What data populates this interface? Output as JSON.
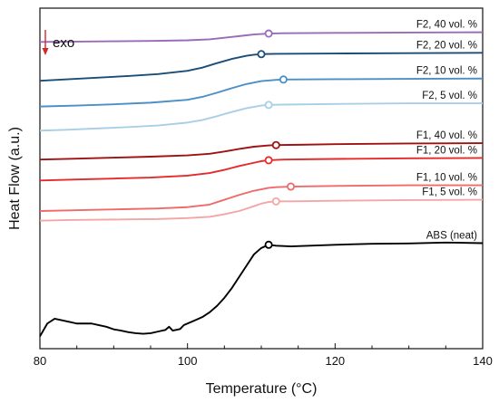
{
  "chart_data": {
    "type": "line",
    "title": "",
    "xlabel": "Temperature (°C)",
    "ylabel": "Heat Flow (a.u.)",
    "xlim": [
      80,
      140
    ],
    "ylim": [
      0,
      100
    ],
    "xticks": [
      80,
      100,
      120,
      140
    ],
    "grid": false,
    "legend": "none",
    "annotation": "exo",
    "annotation_color": "#d62728",
    "series": [
      {
        "name": "ABS (neat)",
        "color": "#000000",
        "marker_x": 111.0,
        "points": [
          [
            80,
            1
          ],
          [
            81,
            5
          ],
          [
            82,
            6.5
          ],
          [
            83,
            6
          ],
          [
            84,
            5.5
          ],
          [
            85,
            5
          ],
          [
            86,
            5
          ],
          [
            87,
            5
          ],
          [
            88,
            4.5
          ],
          [
            89,
            4
          ],
          [
            90,
            3.2
          ],
          [
            91,
            2.8
          ],
          [
            92,
            2.3
          ],
          [
            93,
            2
          ],
          [
            94,
            1.8
          ],
          [
            95,
            2
          ],
          [
            96,
            2.5
          ],
          [
            97,
            3
          ],
          [
            97.5,
            4
          ],
          [
            98,
            2.8
          ],
          [
            99,
            3.3
          ],
          [
            99.5,
            4.5
          ],
          [
            100,
            5
          ],
          [
            101,
            6
          ],
          [
            102,
            7
          ],
          [
            103,
            8.5
          ],
          [
            104,
            10.5
          ],
          [
            105,
            13
          ],
          [
            106,
            16
          ],
          [
            107,
            19.5
          ],
          [
            108,
            23
          ],
          [
            109,
            26.5
          ],
          [
            110,
            28.5
          ],
          [
            111,
            29.5
          ],
          [
            112,
            29.2
          ],
          [
            114,
            29
          ],
          [
            120,
            29.5
          ],
          [
            125,
            29.8
          ],
          [
            130,
            29.9
          ],
          [
            135,
            30.2
          ],
          [
            140,
            30
          ]
        ]
      },
      {
        "name": "F1,   5 vol. %",
        "color": "#f4a6a6",
        "marker_x": 112.0,
        "points": [
          [
            80,
            37
          ],
          [
            84,
            37.2
          ],
          [
            88,
            37.3
          ],
          [
            92,
            37.4
          ],
          [
            96,
            37.5
          ],
          [
            100,
            37.8
          ],
          [
            103,
            38.2
          ],
          [
            105,
            39
          ],
          [
            107,
            40
          ],
          [
            109,
            41.5
          ],
          [
            110,
            42.3
          ],
          [
            111,
            42.8
          ],
          [
            112,
            43
          ],
          [
            114,
            43
          ],
          [
            120,
            43.2
          ],
          [
            130,
            43.4
          ],
          [
            140,
            43.5
          ]
        ]
      },
      {
        "name": "F1, 10 vol. %",
        "color": "#f06a6a",
        "marker_x": 114.0,
        "points": [
          [
            80,
            40
          ],
          [
            84,
            40.2
          ],
          [
            88,
            40.4
          ],
          [
            92,
            40.6
          ],
          [
            96,
            40.8
          ],
          [
            100,
            41.2
          ],
          [
            103,
            42
          ],
          [
            105,
            43.5
          ],
          [
            107,
            45
          ],
          [
            109,
            46.3
          ],
          [
            111,
            47.2
          ],
          [
            112,
            47.4
          ],
          [
            114,
            47.6
          ],
          [
            120,
            47.8
          ],
          [
            130,
            48
          ],
          [
            140,
            48
          ]
        ]
      },
      {
        "name": "F1, 20 vol. %",
        "color": "#e42a2a",
        "marker_x": 111.0,
        "points": [
          [
            80,
            49.5
          ],
          [
            85,
            49.8
          ],
          [
            90,
            50.1
          ],
          [
            95,
            50.4
          ],
          [
            100,
            51
          ],
          [
            103,
            51.8
          ],
          [
            105,
            52.8
          ],
          [
            107,
            54
          ],
          [
            109,
            55
          ],
          [
            110,
            55.5
          ],
          [
            111,
            55.8
          ],
          [
            113,
            56
          ],
          [
            120,
            56.2
          ],
          [
            130,
            56.4
          ],
          [
            140,
            56.5
          ]
        ]
      },
      {
        "name": "F1, 40 vol. %",
        "color": "#a01212",
        "marker_x": 112.0,
        "points": [
          [
            80,
            56
          ],
          [
            85,
            56.3
          ],
          [
            90,
            56.6
          ],
          [
            95,
            56.9
          ],
          [
            100,
            57.3
          ],
          [
            103,
            57.8
          ],
          [
            105,
            58.5
          ],
          [
            107,
            59.3
          ],
          [
            109,
            60
          ],
          [
            111,
            60.4
          ],
          [
            112,
            60.5
          ],
          [
            115,
            60.6
          ],
          [
            120,
            60.8
          ],
          [
            130,
            61
          ],
          [
            140,
            61.1
          ]
        ]
      },
      {
        "name": "F2,   5 vol. %",
        "color": "#a9cfe6",
        "marker_x": 111.0,
        "points": [
          [
            80,
            65
          ],
          [
            84,
            65.3
          ],
          [
            88,
            65.7
          ],
          [
            92,
            66.1
          ],
          [
            96,
            66.6
          ],
          [
            100,
            67.5
          ],
          [
            102,
            68.3
          ],
          [
            104,
            69.5
          ],
          [
            106,
            70.8
          ],
          [
            108,
            72
          ],
          [
            110,
            72.8
          ],
          [
            111,
            73
          ],
          [
            113,
            73.1
          ],
          [
            120,
            73.3
          ],
          [
            130,
            73.5
          ],
          [
            140,
            73.5
          ]
        ]
      },
      {
        "name": "F2, 10 vol. %",
        "color": "#4a8fc8",
        "marker_x": 113.0,
        "points": [
          [
            80,
            72.5
          ],
          [
            85,
            72.8
          ],
          [
            90,
            73.2
          ],
          [
            95,
            73.7
          ],
          [
            100,
            74.6
          ],
          [
            102,
            75.5
          ],
          [
            104,
            76.8
          ],
          [
            106,
            78.2
          ],
          [
            108,
            79.5
          ],
          [
            110,
            80.4
          ],
          [
            112,
            80.8
          ],
          [
            113,
            80.9
          ],
          [
            120,
            81
          ],
          [
            130,
            81.1
          ],
          [
            140,
            81.2
          ]
        ]
      },
      {
        "name": "F2, 20 vol. %",
        "color": "#1a4d78",
        "marker_x": 110.0,
        "points": [
          [
            80,
            80.5
          ],
          [
            84,
            81
          ],
          [
            88,
            81.5
          ],
          [
            92,
            82
          ],
          [
            96,
            82.6
          ],
          [
            100,
            83.6
          ],
          [
            102,
            84.6
          ],
          [
            104,
            86
          ],
          [
            106,
            87.3
          ],
          [
            108,
            88.3
          ],
          [
            109,
            88.6
          ],
          [
            110,
            88.8
          ],
          [
            112,
            88.9
          ],
          [
            120,
            89
          ],
          [
            130,
            89.1
          ],
          [
            140,
            89.2
          ]
        ]
      },
      {
        "name": "F2, 40 vol. %",
        "color": "#9a6ab8",
        "marker_x": 111.0,
        "points": [
          [
            80,
            92.6
          ],
          [
            85,
            92.7
          ],
          [
            90,
            92.8
          ],
          [
            95,
            92.9
          ],
          [
            100,
            93.1
          ],
          [
            103,
            93.4
          ],
          [
            105,
            93.9
          ],
          [
            107,
            94.4
          ],
          [
            109,
            94.9
          ],
          [
            111,
            95.2
          ],
          [
            113,
            95.3
          ],
          [
            120,
            95.4
          ],
          [
            130,
            95.5
          ],
          [
            140,
            95.6
          ]
        ]
      }
    ]
  }
}
